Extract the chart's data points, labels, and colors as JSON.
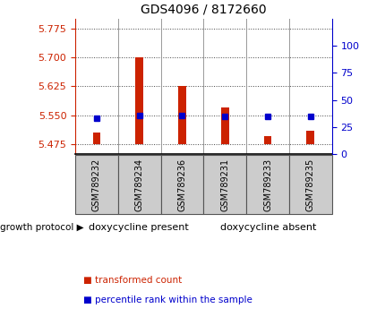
{
  "title": "GDS4096 / 8172660",
  "samples": [
    "GSM789232",
    "GSM789234",
    "GSM789236",
    "GSM789231",
    "GSM789233",
    "GSM789235"
  ],
  "red_values": [
    5.505,
    5.7,
    5.625,
    5.57,
    5.495,
    5.51
  ],
  "blue_values": [
    5.543,
    5.55,
    5.55,
    5.547,
    5.546,
    5.546
  ],
  "base_value": 5.475,
  "ylim_left": [
    5.45,
    5.8
  ],
  "ylim_right": [
    0,
    125
  ],
  "yticks_left": [
    5.475,
    5.55,
    5.625,
    5.7,
    5.775
  ],
  "yticks_right": [
    0,
    25,
    50,
    75,
    100
  ],
  "groups": [
    {
      "label": "doxycycline present",
      "color": "#90ee90",
      "n": 3
    },
    {
      "label": "doxycycline absent",
      "color": "#50c850",
      "n": 3
    }
  ],
  "group_label": "growth protocol",
  "left_color": "#cc2200",
  "right_color": "#0000cc",
  "bar_color": "#cc2200",
  "dot_color": "#0000cc",
  "bar_width": 0.18,
  "dotted_line_color": "#444444",
  "sample_box_color": "#cccccc",
  "legend_red_label": "transformed count",
  "legend_blue_label": "percentile rank within the sample"
}
